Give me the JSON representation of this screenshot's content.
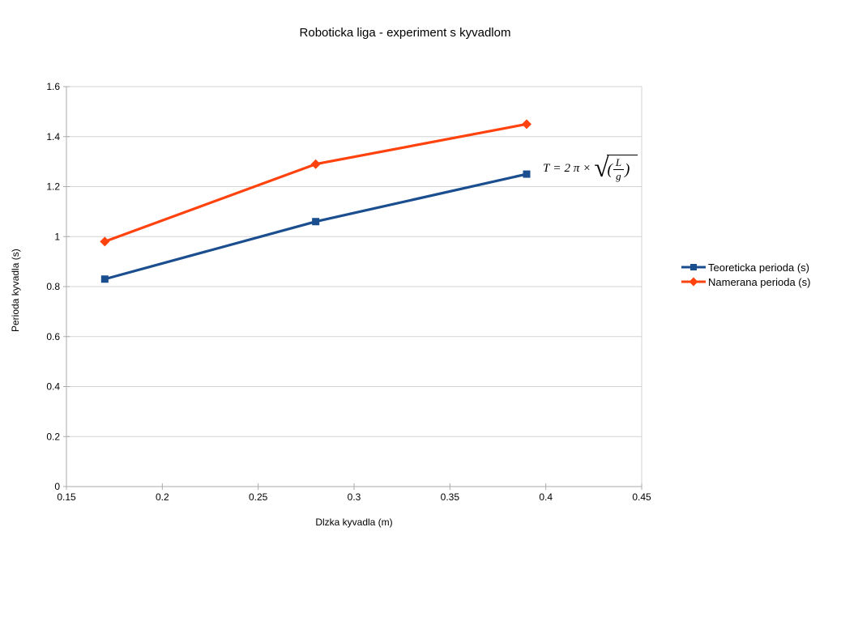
{
  "window": {
    "background": "#ffffff"
  },
  "chart_data": {
    "type": "line",
    "title": "Roboticka liga - experiment s kyvadlom",
    "xlabel": "Dlzka kyvadla (m)",
    "ylabel": "Perioda kyvadla (s)",
    "x": [
      0.17,
      0.28,
      0.39
    ],
    "series": [
      {
        "name": "Teoreticka perioda (s)",
        "values": [
          0.83,
          1.06,
          1.25
        ],
        "color": "#1a4e8f",
        "marker": "square"
      },
      {
        "name": "Namerana perioda (s)",
        "values": [
          0.98,
          1.29,
          1.45
        ],
        "color": "#ff420e",
        "marker": "diamond"
      }
    ],
    "xlim": [
      0.15,
      0.45
    ],
    "ylim": [
      0,
      1.6
    ],
    "x_ticks": {
      "values": [
        0.15,
        0.2,
        0.25,
        0.3,
        0.35,
        0.4,
        0.45
      ],
      "labels": [
        "0.15",
        "0.2",
        "0.25",
        "0.3",
        "0.35",
        "0.4",
        "0.45"
      ]
    },
    "y_ticks": {
      "values": [
        0,
        0.2,
        0.4,
        0.6,
        0.8,
        1,
        1.2,
        1.4,
        1.6
      ],
      "labels": [
        "0",
        "0.2",
        "0.4",
        "0.6",
        "0.8",
        "1",
        "1.2",
        "1.4",
        "1.6"
      ]
    },
    "grid": "horizontal-only",
    "legend_position": "right",
    "colors": {
      "gridline": "#d3d3d3",
      "axis": "#ababab",
      "text": "#000000"
    },
    "annotation": {
      "text": "T = 2 π × √((L/g))",
      "lhs": "T",
      "equals": "=",
      "coefficient": "2 π",
      "times": "×",
      "radical": "√",
      "open_paren": "(",
      "numerator": "L",
      "denominator": "g",
      "close_paren": ")"
    }
  }
}
